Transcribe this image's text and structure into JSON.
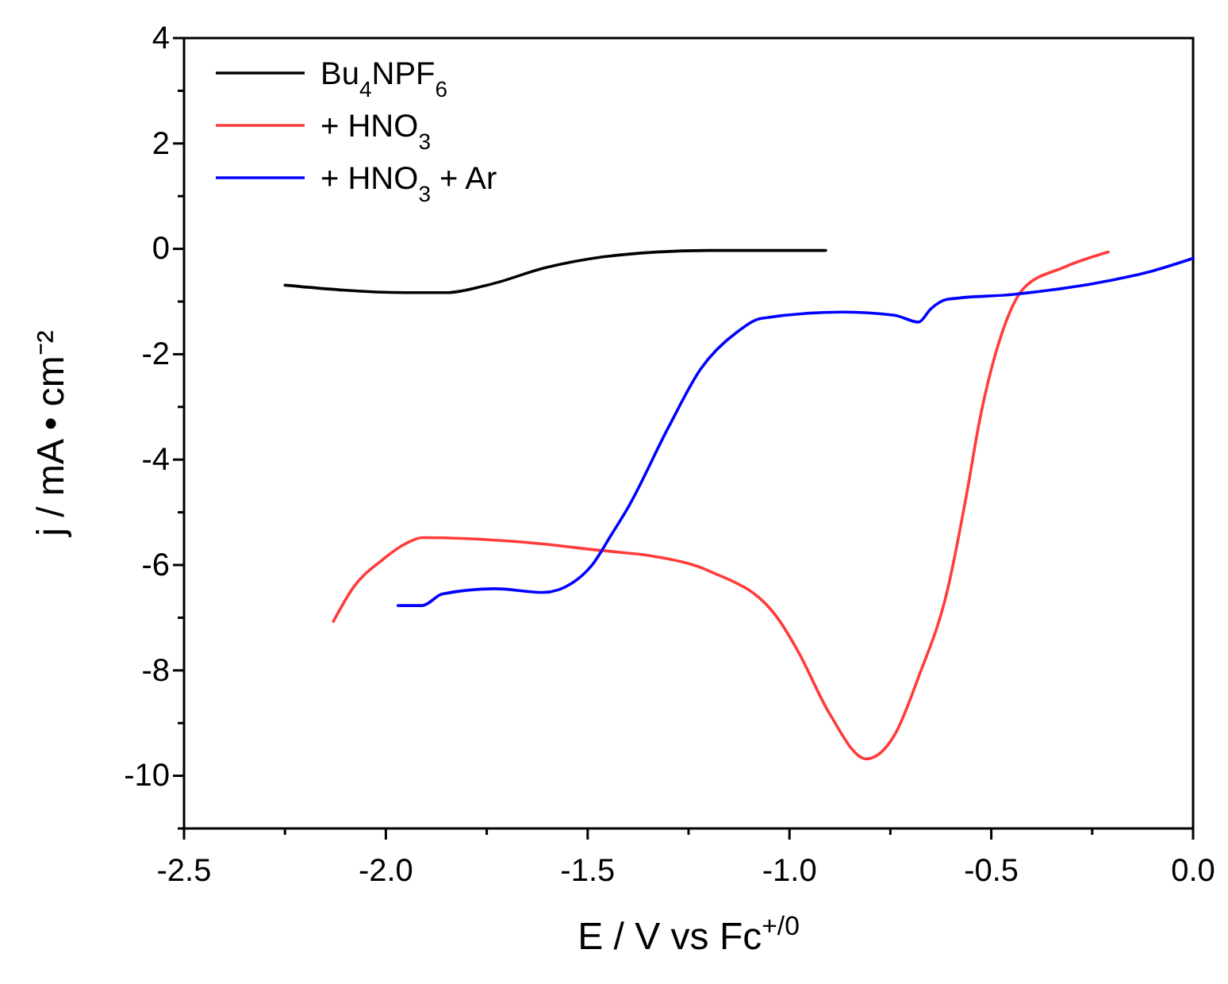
{
  "chart_data": {
    "type": "line",
    "xlabel": "E / V vs Fc$^{+/0}$",
    "ylabel": "j / mA • cm⁻²",
    "xlim": [
      -2.5,
      0
    ],
    "ylim": [
      -11,
      4
    ],
    "xticks": [
      {
        "value": -2.5,
        "label": "-2.5"
      },
      {
        "value": -2.25,
        "label": null
      },
      {
        "value": -2,
        "label": "-2.0"
      },
      {
        "value": -1.75,
        "label": null
      },
      {
        "value": -1.5,
        "label": "-1.5"
      },
      {
        "value": -1.25,
        "label": null
      },
      {
        "value": -1,
        "label": "-1.0"
      },
      {
        "value": -0.75,
        "label": null
      },
      {
        "value": -0.5,
        "label": "-0.5"
      },
      {
        "value": -0.25,
        "label": null
      },
      {
        "value": 0,
        "label": "0.0"
      }
    ],
    "yticks": [
      {
        "value": -11,
        "label": null
      },
      -10,
      {
        "value": -9,
        "label": null
      },
      -8,
      {
        "value": -7,
        "label": null
      },
      -6,
      {
        "value": -5,
        "label": null
      },
      -4,
      {
        "value": -3,
        "label": null
      },
      -2,
      {
        "value": -1,
        "label": null
      },
      0,
      {
        "value": 1,
        "label": null
      },
      2,
      {
        "value": 3,
        "label": null
      },
      4
    ],
    "grid": false,
    "legend": "top left",
    "marker": "none",
    "line_style": "solid",
    "series": [
      {
        "name": "Bu$_{4}$NPF$_{6}$",
        "color": "#000000",
        "x": [
          -2.25,
          -1.95,
          -1.85,
          -1.75,
          -1.6,
          -1.46,
          -1.33,
          -1.2,
          -0.91
        ],
        "values": [
          -0.69,
          -0.83,
          -0.83,
          -0.69,
          -0.35,
          -0.15,
          -0.06,
          -0.03,
          -0.03
        ]
      },
      {
        "name": "+ HNO$_{3}$",
        "color": "#ff3b3b",
        "x": [
          -2.13,
          -2.08,
          -2.01,
          -1.95,
          -1.91,
          -1.67,
          -1.46,
          -1.34,
          -1.2,
          -1.03,
          -0.98,
          -0.9,
          -0.81,
          -0.74,
          -0.68,
          -0.61,
          -0.56,
          -0.53,
          -0.47,
          -0.42,
          -0.32,
          -0.21
        ],
        "values": [
          -7.07,
          -6.42,
          -5.91,
          -5.59,
          -5.48,
          -5.56,
          -5.73,
          -5.83,
          -6.11,
          -7.0,
          -7.62,
          -8.83,
          -9.68,
          -9.23,
          -8.12,
          -6.52,
          -4.61,
          -3.3,
          -1.52,
          -0.75,
          -0.35,
          -0.06
        ]
      },
      {
        "name": "+ HNO$_{3}$ + Ar",
        "color": "#0000ff",
        "x": [
          -1.97,
          -1.91,
          -1.86,
          -1.73,
          -1.61,
          -1.54,
          -1.49,
          -1.44,
          -1.4,
          -1.3,
          -1.22,
          -1.13,
          -1.07,
          -0.87,
          -0.74,
          -0.68,
          -0.65,
          -0.61,
          -0.44,
          -0.24,
          -0.11,
          0
        ],
        "values": [
          -6.77,
          -6.77,
          -6.55,
          -6.45,
          -6.52,
          -6.35,
          -6.01,
          -5.41,
          -4.91,
          -3.39,
          -2.28,
          -1.58,
          -1.32,
          -1.2,
          -1.26,
          -1.39,
          -1.14,
          -0.96,
          -0.86,
          -0.65,
          -0.44,
          -0.18
        ]
      }
    ]
  }
}
